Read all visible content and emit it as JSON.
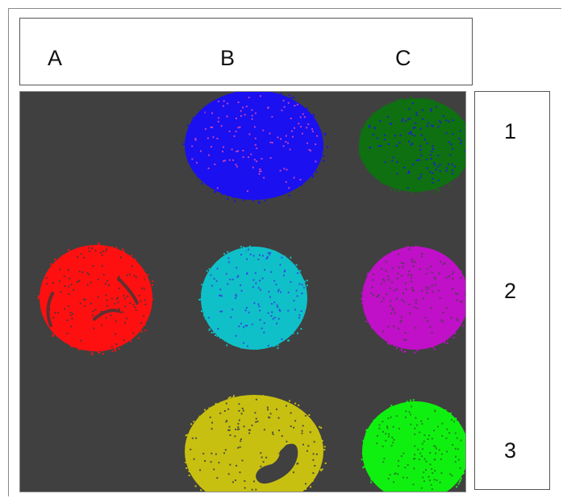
{
  "columns": [
    "A",
    "B",
    "C"
  ],
  "rows": [
    "1",
    "2",
    "3"
  ],
  "wells": [
    {
      "col": "B",
      "row": "1",
      "color": "#1a10f0",
      "speckle": "#c040c0"
    },
    {
      "col": "C",
      "row": "1",
      "color": "#0e7010",
      "speckle": "#2020d0"
    },
    {
      "col": "A",
      "row": "2",
      "color": "#ff1010",
      "speckle": "#603030"
    },
    {
      "col": "B",
      "row": "2",
      "color": "#10c0c8",
      "speckle": "#3050e0"
    },
    {
      "col": "C",
      "row": "2",
      "color": "#c010c8",
      "speckle": "#5a3a5a"
    },
    {
      "col": "B",
      "row": "3",
      "color": "#c8c010",
      "speckle": "#505040"
    },
    {
      "col": "C",
      "row": "3",
      "color": "#10f010",
      "speckle": "#1c8a1c"
    }
  ],
  "colors": {
    "plate_background": "#404040"
  }
}
